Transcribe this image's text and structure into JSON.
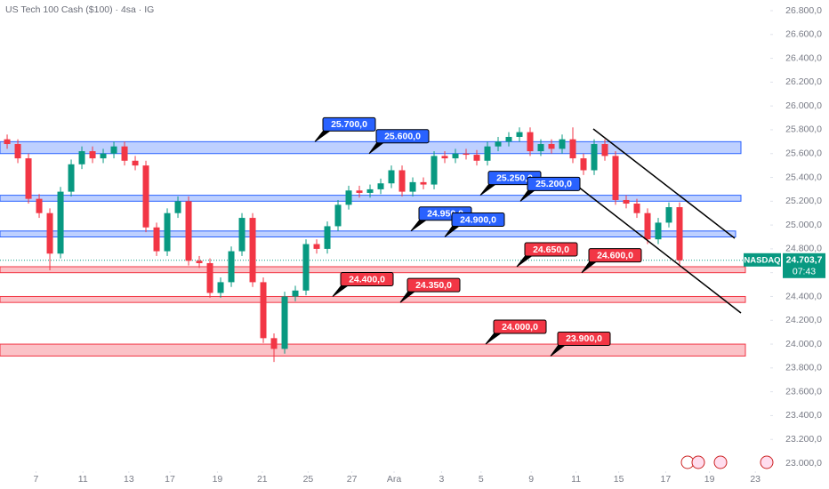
{
  "chart_data": {
    "type": "candlestick",
    "title": "US Tech 100 Cash ($100) · 4sa · IG",
    "up_color": "#089981",
    "down_color": "#f23645",
    "open": [
      25720,
      25680,
      25560,
      25220,
      25100,
      24760,
      25280,
      25510,
      25620,
      25560,
      25600,
      25660,
      25540,
      25500,
      24980,
      24780,
      25100,
      25200,
      24700,
      24680,
      24430,
      24520,
      24780,
      25060,
      24520,
      24050,
      23960,
      24400,
      24450,
      24840,
      24800,
      24990,
      25170,
      25290,
      25270,
      25300,
      25350,
      25460,
      25280,
      25360,
      25340,
      25580,
      25560,
      25600,
      25590,
      25540,
      25660,
      25700,
      25740,
      25780,
      25620,
      25680,
      25640,
      25720,
      25560,
      25460,
      25680,
      25580,
      25210,
      25180,
      25100,
      24880,
      25020,
      25150
    ],
    "high": [
      25760,
      25720,
      25600,
      25260,
      25140,
      25320,
      25550,
      25660,
      25660,
      25640,
      25700,
      25700,
      25580,
      25540,
      25020,
      25140,
      25240,
      25240,
      24740,
      24720,
      24560,
      24820,
      25100,
      25100,
      24560,
      24090,
      24440,
      24490,
      24880,
      24880,
      25030,
      25210,
      25330,
      25330,
      25340,
      25390,
      25500,
      25500,
      25400,
      25400,
      25620,
      25620,
      25640,
      25640,
      25630,
      25700,
      25740,
      25780,
      25820,
      25820,
      25720,
      25720,
      25760,
      25820,
      25600,
      25720,
      25720,
      25620,
      25250,
      25220,
      25140,
      25060,
      25190,
      25190
    ],
    "low": [
      25640,
      25520,
      25180,
      25060,
      24620,
      24720,
      25240,
      25470,
      25520,
      25520,
      25560,
      25500,
      25460,
      24940,
      24740,
      24740,
      25060,
      24660,
      24640,
      24390,
      24390,
      24480,
      24740,
      24480,
      24010,
      23850,
      23920,
      24360,
      24410,
      24760,
      24760,
      24950,
      25130,
      25230,
      25230,
      25260,
      25310,
      25240,
      25240,
      25300,
      25300,
      25520,
      25520,
      25550,
      25500,
      25500,
      25620,
      25660,
      25700,
      25580,
      25580,
      25600,
      25600,
      25520,
      25420,
      25420,
      25540,
      25170,
      25140,
      25060,
      24840,
      24840,
      24980,
      24660
    ],
    "close": [
      25680,
      25560,
      25220,
      25100,
      24760,
      25280,
      25510,
      25620,
      25560,
      25600,
      25660,
      25540,
      25500,
      24980,
      24780,
      25100,
      25200,
      24700,
      24680,
      24430,
      24520,
      24780,
      25060,
      24520,
      24050,
      23960,
      24400,
      24450,
      24840,
      24800,
      24990,
      25170,
      25290,
      25270,
      25300,
      25350,
      25460,
      25280,
      25360,
      25340,
      25580,
      25560,
      25600,
      25590,
      25540,
      25660,
      25700,
      25740,
      25780,
      25620,
      25680,
      25640,
      25720,
      25560,
      25460,
      25680,
      25580,
      25210,
      25180,
      25100,
      24880,
      25020,
      25150,
      24703.7
    ],
    "xlim": [
      -0.67,
      71
    ],
    "xticks": [
      {
        "value": 2.7,
        "label": "7"
      },
      {
        "value": 7.1,
        "label": "11"
      },
      {
        "value": 11.4,
        "label": "13"
      },
      {
        "value": 15.25,
        "label": "17"
      },
      {
        "value": 19.7,
        "label": "19"
      },
      {
        "value": 23.9,
        "label": "21"
      },
      {
        "value": 28.2,
        "label": "25"
      },
      {
        "value": 32.3,
        "label": "27"
      },
      {
        "value": 36.25,
        "label": "Ara"
      },
      {
        "value": 40.7,
        "label": "3"
      },
      {
        "value": 44.4,
        "label": "5"
      },
      {
        "value": 49.1,
        "label": "9"
      },
      {
        "value": 53.3,
        "label": "11"
      },
      {
        "value": 57.3,
        "label": "15"
      },
      {
        "value": 61.7,
        "label": "17"
      },
      {
        "value": 65.8,
        "label": "19"
      },
      {
        "value": 70.1,
        "label": "23"
      }
    ],
    "ylim": [
      23000,
      26800
    ],
    "yticks": [
      {
        "value": 26800,
        "label": "26.800,0"
      },
      {
        "value": 26600,
        "label": "26.600,0"
      },
      {
        "value": 26400,
        "label": "26.400,0"
      },
      {
        "value": 26200,
        "label": "26.200,0"
      },
      {
        "value": 26000,
        "label": "26.000,0"
      },
      {
        "value": 25800,
        "label": "25.800,0"
      },
      {
        "value": 25600,
        "label": "25.600,0"
      },
      {
        "value": 25400,
        "label": "25.400,0"
      },
      {
        "value": 25200,
        "label": "25.200,0"
      },
      {
        "value": 25000,
        "label": "25.000,0"
      },
      {
        "value": 24800,
        "label": "24.800,0"
      },
      {
        "value": 24600,
        "label": "24.600,0"
      },
      {
        "value": 24400,
        "label": "24.400,0"
      },
      {
        "value": 24200,
        "label": "24.200,0"
      },
      {
        "value": 24000,
        "label": "24.000,0"
      },
      {
        "value": 23800,
        "label": "23.800,0"
      },
      {
        "value": 23600,
        "label": "23.600,0"
      },
      {
        "value": 23400,
        "label": "23.400,0"
      },
      {
        "value": 23200,
        "label": "23.200,0"
      },
      {
        "value": 23000,
        "label": "23.000,0"
      }
    ],
    "zones": [
      {
        "top": {
          "value": 25700,
          "label": "25.700,0"
        },
        "bottom": {
          "value": 25600,
          "label": "25.600,0"
        },
        "color": "#2962ff"
      },
      {
        "top": {
          "value": 25250,
          "label": "25.250,0"
        },
        "bottom": {
          "value": 25200,
          "label": "25.200,0"
        },
        "color": "#2962ff"
      },
      {
        "top": {
          "value": 24950,
          "label": "24.950,0"
        },
        "bottom": {
          "value": 24900,
          "label": "24.900,0"
        },
        "color": "#2962ff"
      },
      {
        "top": {
          "value": 24650,
          "label": "24.650,0"
        },
        "bottom": {
          "value": 24600,
          "label": "24.600,0"
        },
        "color": "#f23645"
      },
      {
        "top": {
          "value": 24400,
          "label": "24.400,0"
        },
        "bottom": {
          "value": 24350,
          "label": "24.350,0"
        },
        "color": "#f23645"
      },
      {
        "top": {
          "value": 24000,
          "label": "24.000,0"
        },
        "bottom": {
          "value": 23900,
          "label": "23.900,0"
        },
        "color": "#f23645"
      }
    ],
    "last": {
      "value": 24703.7,
      "label": "24.703,7"
    },
    "symbol": "NASDAQ",
    "countdown": "07:43"
  }
}
